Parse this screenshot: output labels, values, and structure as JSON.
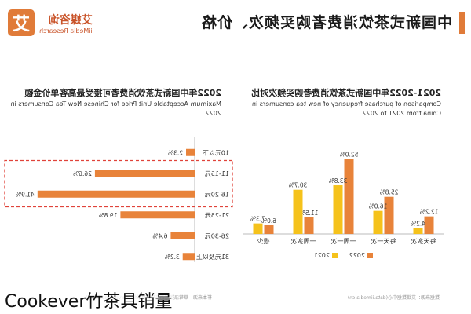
{
  "header": {
    "title": "中国新式茶饮消费者购买频次、价格",
    "logo_mark": "艾",
    "logo_name": "艾媒咨询",
    "logo_sub": "iiMedia Research"
  },
  "colors": {
    "orange": "#e8833a",
    "yellow": "#f5c21b",
    "highlight": "#e0433a",
    "accent": "#e07b39"
  },
  "chart_data": [
    {
      "type": "bar",
      "title": "2021-2022年中国新式茶饮消费者购买频次对比",
      "subtitle_line1": "Comparison of purchase frequency of new tea consumers in",
      "subtitle_line2": "China from 2021 to 2022",
      "categories": [
        "每天多次",
        "每天一次",
        "一周一次",
        "一周多次",
        "很少"
      ],
      "series": [
        {
          "name": "2022",
          "values": [
            12.2,
            25.8,
            52.0,
            11.5,
            6.0
          ],
          "labels": [
            "12.2%",
            "25.8%",
            "52.0%",
            "11.5%",
            "6.0%"
          ]
        },
        {
          "name": "2021",
          "values": [
            4.2,
            16.0,
            33.8,
            30.7,
            7.3
          ],
          "labels": [
            "4.2%",
            "16.0%",
            "33.8%",
            "30.7%",
            "7.3%"
          ]
        }
      ],
      "ylim": [
        0,
        60
      ]
    },
    {
      "type": "bar",
      "orientation": "horizontal",
      "title": "2022年中国新式茶饮消费者可接受最高客单价金额",
      "subtitle_line1": "Maximum Acceptable Unit Price for Chinese New Tea Consumers in",
      "subtitle_line2": "2022",
      "categories": [
        "10元以下",
        "11-15元",
        "16-20元",
        "21-25元",
        "26-30元",
        "31元及以上"
      ],
      "values": [
        2.3,
        26.6,
        41.9,
        19.8,
        6.4,
        3.2
      ],
      "labels": [
        "2.3%",
        "26.6%",
        "41.9%",
        "19.8%",
        "6.4%",
        "3.2%"
      ],
      "highlighted": [
        "11-15元",
        "16-20元"
      ],
      "xlim": [
        0,
        45
      ]
    }
  ],
  "footer": {
    "left_source": "数据来源：艾媒数据中心(data.iimedia.cn)",
    "right_source": "样本来源：草莓派数据调查与计算系统 (survey.iimedia.cn)"
  },
  "overlay_caption": "Cookever竹茶具销量"
}
